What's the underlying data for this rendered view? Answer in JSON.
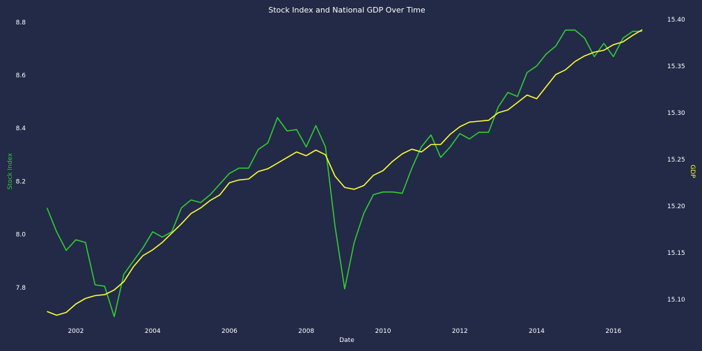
{
  "chart_data": {
    "type": "line",
    "title": "Stock Index and National GDP Over Time",
    "xlabel": "Date",
    "ylabel_left": "Stock Index",
    "ylabel_right": "GDP",
    "xlim": [
      2000.95,
      2017.2
    ],
    "ylim_left": [
      7.65,
      8.81
    ],
    "ylim_right": [
      15.07,
      15.4
    ],
    "x_ticks": [
      2002,
      2004,
      2006,
      2008,
      2010,
      2012,
      2014,
      2016
    ],
    "x_tick_labels": [
      "2002",
      "2004",
      "2006",
      "2008",
      "2010",
      "2012",
      "2014",
      "2016"
    ],
    "y_left_ticks": [
      7.8,
      8.0,
      8.2,
      8.4,
      8.6,
      8.8
    ],
    "y_left_tick_labels": [
      "7.8",
      "8.0",
      "8.2",
      "8.4",
      "8.6",
      "8.8"
    ],
    "y_right_ticks": [
      15.1,
      15.15,
      15.2,
      15.25,
      15.3,
      15.35,
      15.4
    ],
    "y_right_tick_labels": [
      "15.10",
      "15.15",
      "15.20",
      "15.25",
      "15.30",
      "15.35",
      "15.40"
    ],
    "grid": false,
    "colors": {
      "background": "#222a47",
      "stock": "#33cc33",
      "gdp": "#ffff33",
      "text": "#ffffff"
    },
    "x": [
      2001.25,
      2001.5,
      2001.75,
      2002.0,
      2002.25,
      2002.5,
      2002.75,
      2003.0,
      2003.25,
      2003.5,
      2003.75,
      2004.0,
      2004.25,
      2004.5,
      2004.75,
      2005.0,
      2005.25,
      2005.5,
      2005.75,
      2006.0,
      2006.25,
      2006.5,
      2006.75,
      2007.0,
      2007.25,
      2007.5,
      2007.75,
      2008.0,
      2008.25,
      2008.5,
      2008.75,
      2009.0,
      2009.25,
      2009.5,
      2009.75,
      2010.0,
      2010.25,
      2010.5,
      2010.75,
      2011.0,
      2011.25,
      2011.5,
      2011.75,
      2012.0,
      2012.25,
      2012.5,
      2012.75,
      2013.0,
      2013.25,
      2013.5,
      2013.75,
      2014.0,
      2014.25,
      2014.5,
      2014.75,
      2015.0,
      2015.25,
      2015.5,
      2015.75,
      2016.0,
      2016.25,
      2016.5,
      2016.75
    ],
    "series": [
      {
        "name": "Stock Index",
        "axis": "left",
        "values": [
          8.1,
          8.01,
          7.94,
          7.98,
          7.97,
          7.81,
          7.805,
          7.69,
          7.85,
          7.9,
          7.95,
          8.01,
          7.99,
          8.01,
          8.1,
          8.13,
          8.12,
          8.15,
          8.19,
          8.23,
          8.25,
          8.25,
          8.32,
          8.345,
          8.44,
          8.39,
          8.395,
          8.33,
          8.41,
          8.33,
          8.03,
          7.795,
          7.97,
          8.08,
          8.15,
          8.16,
          8.16,
          8.155,
          8.25,
          8.33,
          8.375,
          8.29,
          8.33,
          8.38,
          8.36,
          8.385,
          8.385,
          8.48,
          8.535,
          8.52,
          8.61,
          8.635,
          8.68,
          8.71,
          8.77,
          8.77,
          8.74,
          8.67,
          8.72,
          8.67,
          8.74,
          8.765,
          8.765
        ]
      },
      {
        "name": "GDP",
        "axis": "right",
        "values": [
          15.087,
          15.083,
          15.086,
          15.095,
          15.101,
          15.104,
          15.105,
          15.11,
          15.119,
          15.135,
          15.147,
          15.153,
          15.161,
          15.171,
          15.181,
          15.192,
          15.198,
          15.206,
          15.212,
          15.225,
          15.228,
          15.229,
          15.237,
          15.24,
          15.246,
          15.252,
          15.258,
          15.254,
          15.26,
          15.255,
          15.232,
          15.22,
          15.218,
          15.222,
          15.233,
          15.238,
          15.248,
          15.256,
          15.261,
          15.258,
          15.266,
          15.266,
          15.277,
          15.285,
          15.29,
          15.291,
          15.292,
          15.3,
          15.303,
          15.311,
          15.319,
          15.315,
          15.328,
          15.341,
          15.346,
          15.355,
          15.361,
          15.365,
          15.367,
          15.373,
          15.376,
          15.383,
          15.389
        ]
      }
    ]
  }
}
